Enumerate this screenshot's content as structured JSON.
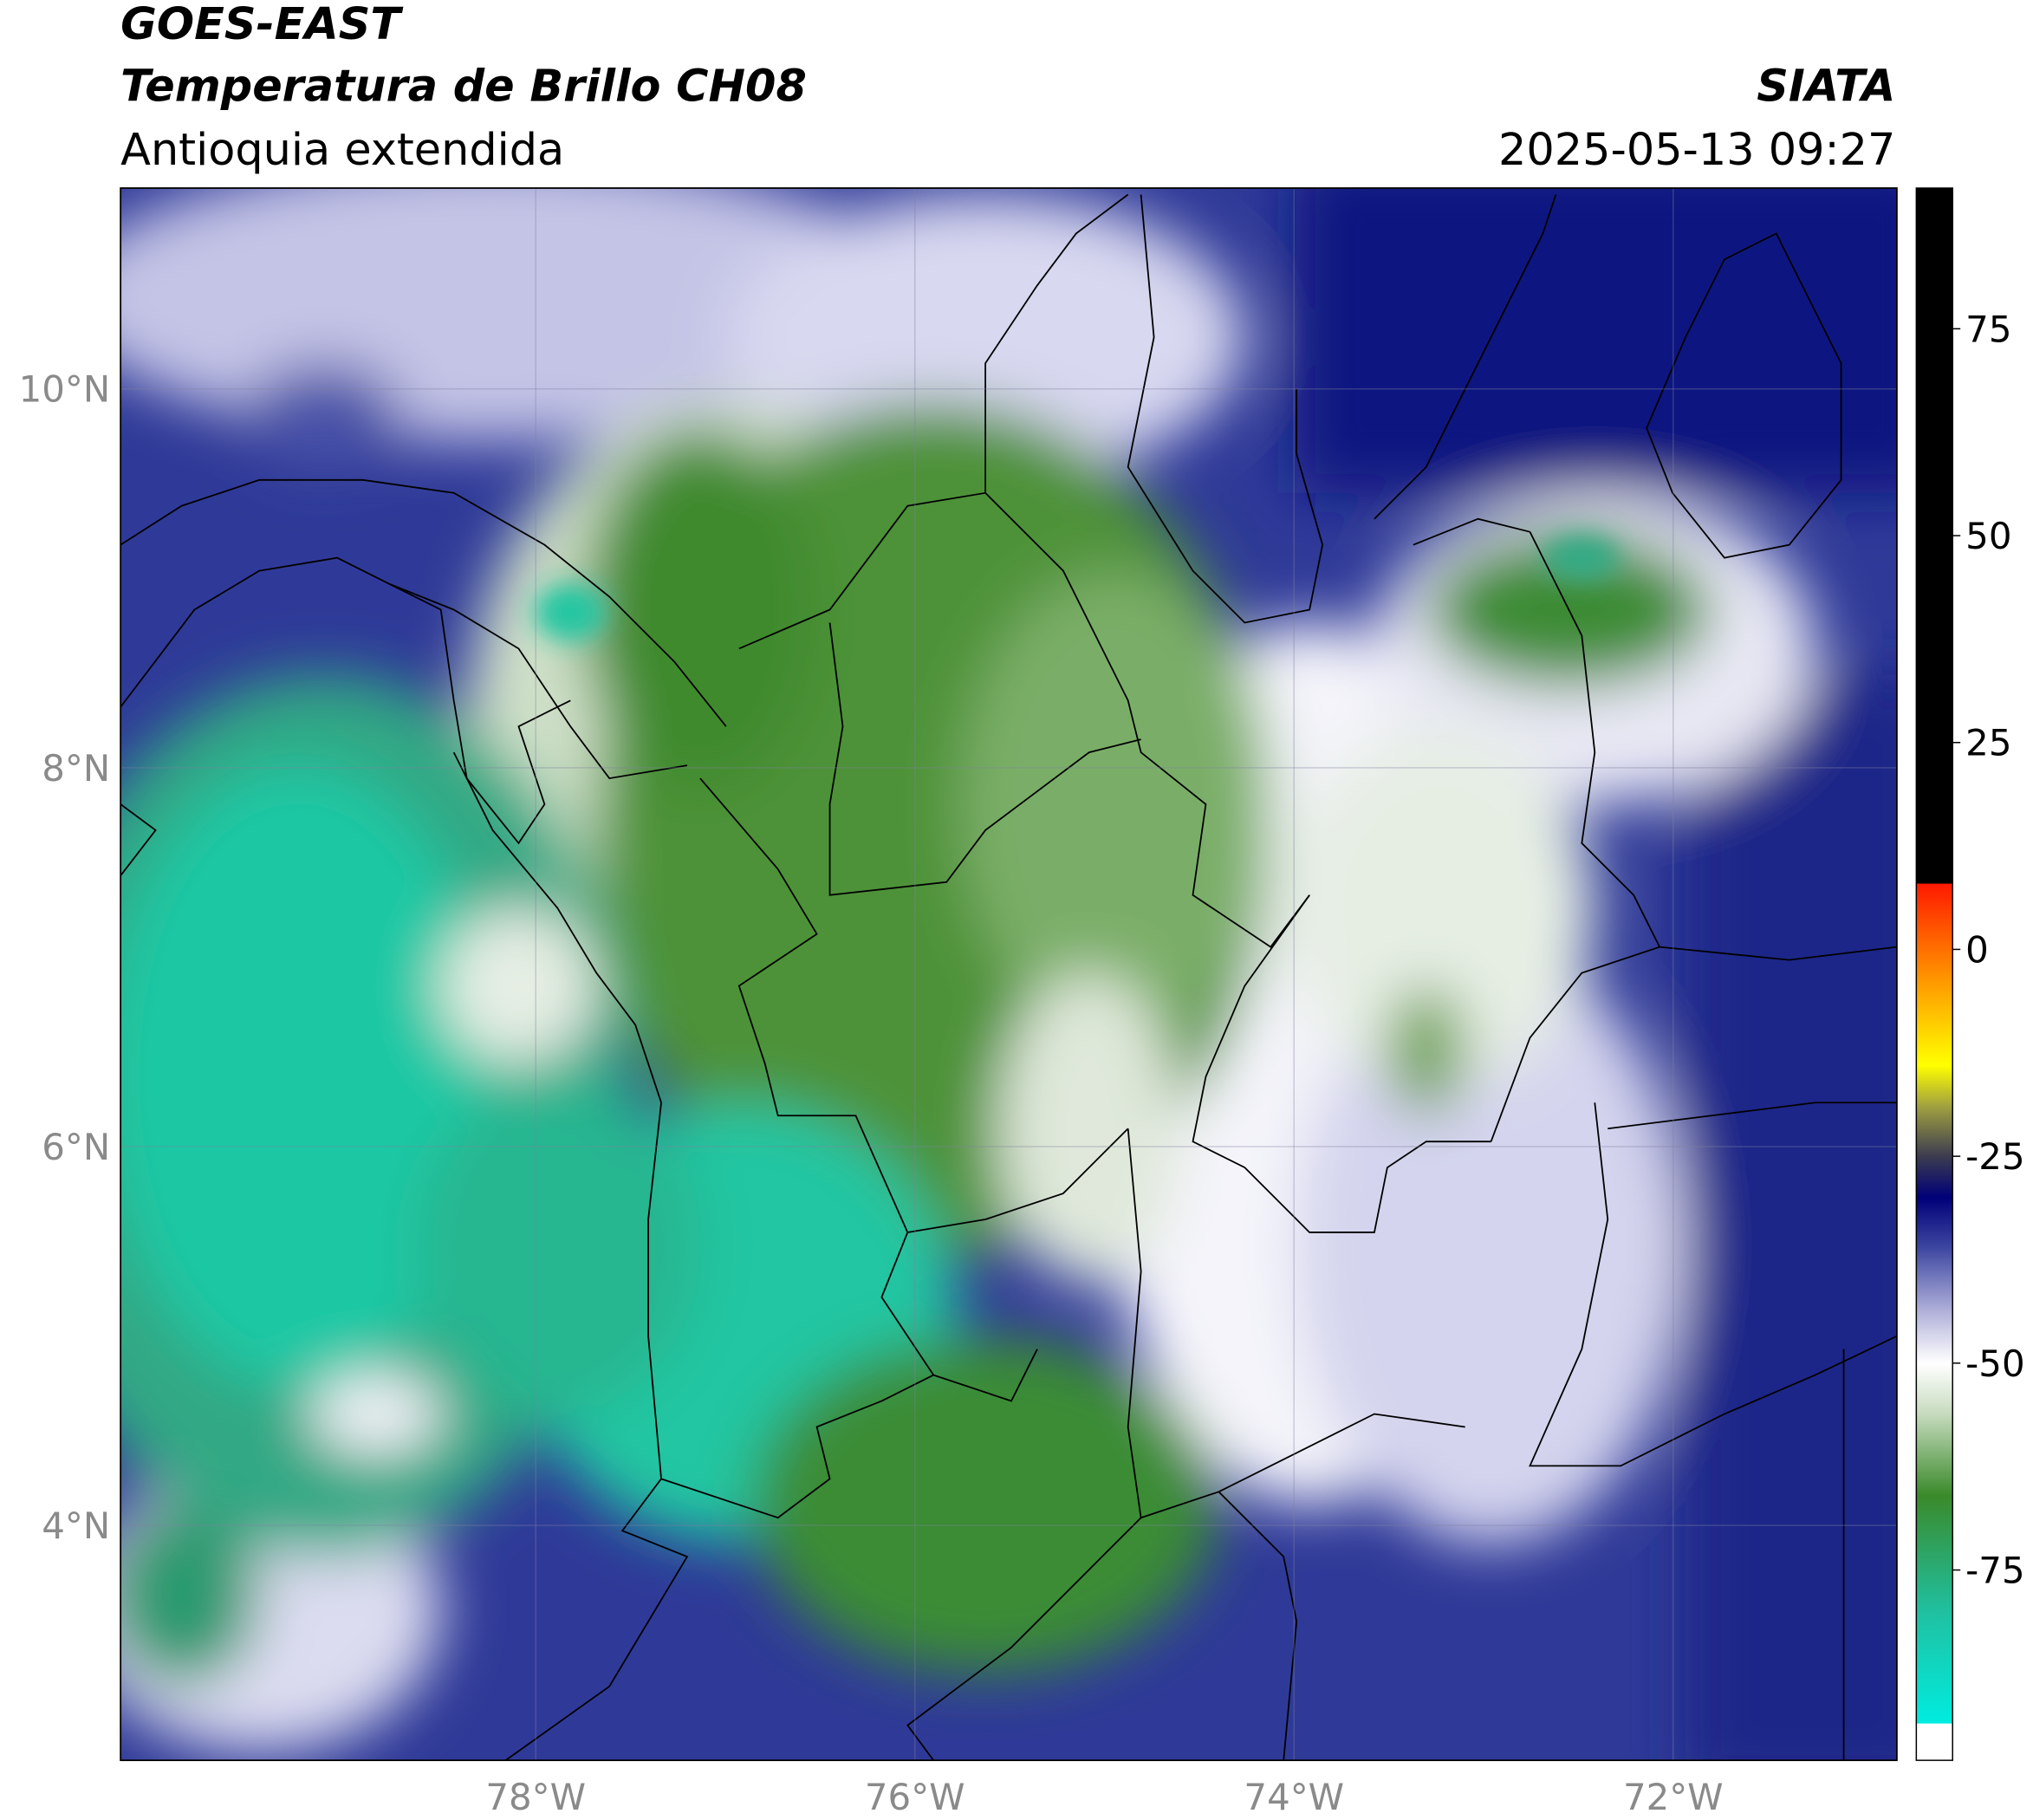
{
  "header": {
    "title_lines": [
      "GOES-EAST",
      "Temperatura de Brillo CH08"
    ],
    "subtitle": "Antioquia extendida",
    "organization": "SIATA",
    "datetime": "2025-05-13 09:27"
  },
  "map": {
    "latlim": [
      2.76,
      11.06
    ],
    "lonlim": [
      -80.19,
      -70.82
    ],
    "lat_ticks": [
      {
        "value": 10,
        "label": "10°N"
      },
      {
        "value": 8,
        "label": "8°N"
      },
      {
        "value": 6,
        "label": "6°N"
      },
      {
        "value": 4,
        "label": "4°N"
      }
    ],
    "lon_ticks": [
      {
        "value": -78,
        "label": "78°W"
      },
      {
        "value": -76,
        "label": "76°W"
      },
      {
        "value": -74,
        "label": "74°W"
      },
      {
        "value": -72,
        "label": "72°W"
      }
    ],
    "grid": true
  },
  "colorbar": {
    "range": [
      -98,
      92
    ],
    "ticks": [
      75,
      50,
      25,
      0,
      -25,
      -50,
      -75
    ],
    "colormap": [
      {
        "value": -98,
        "color": "#ffffff"
      },
      {
        "value": -93.6,
        "color": "#ffffff"
      },
      {
        "value": -93.5,
        "color": "#00ecdf"
      },
      {
        "value": -80,
        "color": "#20c0a0"
      },
      {
        "value": -66,
        "color": "#3a8a2a"
      },
      {
        "value": -56,
        "color": "#c8dcc0"
      },
      {
        "value": -50,
        "color": "#ffffff"
      },
      {
        "value": -44,
        "color": "#b4b4dc"
      },
      {
        "value": -36,
        "color": "#3c46a0"
      },
      {
        "value": -30,
        "color": "#000078"
      },
      {
        "value": -25,
        "color": "#3c3c50"
      },
      {
        "value": -19,
        "color": "#a0a040"
      },
      {
        "value": -14,
        "color": "#ffff00"
      },
      {
        "value": -4,
        "color": "#ff9a00"
      },
      {
        "value": 7.9,
        "color": "#ff1a00"
      },
      {
        "value": 8,
        "color": "#000000"
      },
      {
        "value": 92,
        "color": "#000000"
      }
    ]
  }
}
